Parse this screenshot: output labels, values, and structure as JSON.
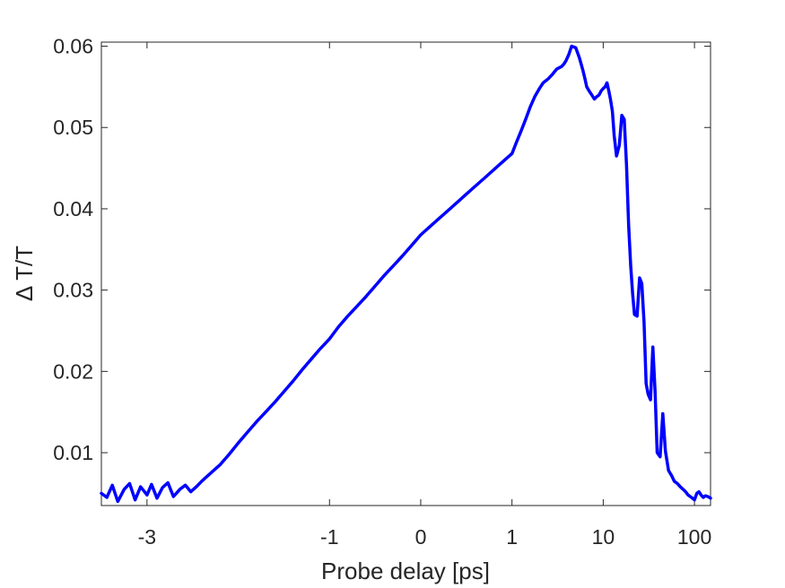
{
  "chart_data": {
    "type": "line",
    "xlabel": "Probe delay [ps]",
    "ylabel": "Δ T/T",
    "x_scale": "linear-log",
    "xlim": [
      -3.5,
      150
    ],
    "ylim": [
      0.0035,
      0.0605
    ],
    "grid": false,
    "legend": "none",
    "x_ticks": [
      -3,
      -1,
      0,
      1,
      10,
      100
    ],
    "x_tick_labels": [
      "-3",
      "-1",
      "0",
      "1",
      "10",
      "100"
    ],
    "y_ticks": [
      0.01,
      0.02,
      0.03,
      0.04,
      0.05,
      0.06
    ],
    "y_tick_labels": [
      "0.01",
      "0.02",
      "0.03",
      "0.04",
      "0.05",
      "0.06"
    ],
    "line_color": "#0000ff",
    "series": [
      {
        "x": [
          -3.5,
          -3.44,
          -3.38,
          -3.32,
          -3.25,
          -3.19,
          -3.13,
          -3.07,
          -3.0,
          -2.95,
          -2.89,
          -2.83,
          -2.77,
          -2.71,
          -2.64,
          -2.58,
          -2.52,
          -2.46,
          -2.4,
          -2.3,
          -2.2,
          -2.1,
          -2.0,
          -1.9,
          -1.8,
          -1.7,
          -1.6,
          -1.5,
          -1.4,
          -1.3,
          -1.2,
          -1.1,
          -1.0,
          -0.9,
          -0.8,
          -0.7,
          -0.6,
          -0.5,
          -0.4,
          -0.3,
          -0.2,
          -0.1,
          0.0,
          0.1,
          0.2,
          0.3,
          0.4,
          0.5,
          0.6,
          0.7,
          0.8,
          0.9,
          1.0,
          1.12,
          1.26,
          1.41,
          1.58,
          1.78,
          2.0,
          2.2,
          2.5,
          2.8,
          3.1,
          3.5,
          3.7,
          3.9,
          4.2,
          4.5,
          5.0,
          5.5,
          6.0,
          6.3,
          6.6,
          7.0,
          7.5,
          8.0,
          8.5,
          9.0,
          9.5,
          10.0,
          10.5,
          11.0,
          11.5,
          12.0,
          12.6,
          13.2,
          14.0,
          15.0,
          16.0,
          17.0,
          18.0,
          19.0,
          20.0,
          21.0,
          22.0,
          23.5,
          25.0,
          26.5,
          28.0,
          29.5,
          31.0,
          33.0,
          35.0,
          37.0,
          39.0,
          42.0,
          45.0,
          48.0,
          52.0,
          56.0,
          60.0,
          65.0,
          70.0,
          75.0,
          80.0,
          85.0,
          90.0,
          95.0,
          100.0,
          106.0,
          112.0,
          118.0,
          125.0,
          132.0,
          140.0,
          150.0
        ],
        "y": [
          0.005,
          0.0045,
          0.006,
          0.004,
          0.0055,
          0.0062,
          0.0042,
          0.0058,
          0.0048,
          0.0061,
          0.0044,
          0.0057,
          0.0063,
          0.0046,
          0.0055,
          0.006,
          0.0052,
          0.0058,
          0.0065,
          0.0075,
          0.0085,
          0.0098,
          0.0112,
          0.0125,
          0.0138,
          0.015,
          0.0162,
          0.0175,
          0.0188,
          0.0202,
          0.0215,
          0.0228,
          0.024,
          0.0255,
          0.0268,
          0.028,
          0.0292,
          0.0305,
          0.0318,
          0.033,
          0.0342,
          0.0355,
          0.0368,
          0.0378,
          0.0388,
          0.0398,
          0.0408,
          0.0418,
          0.0428,
          0.0438,
          0.0448,
          0.0458,
          0.0468,
          0.0482,
          0.0496,
          0.051,
          0.0525,
          0.0538,
          0.0548,
          0.0555,
          0.056,
          0.0566,
          0.0572,
          0.0575,
          0.0578,
          0.0582,
          0.059,
          0.06,
          0.0598,
          0.0585,
          0.057,
          0.056,
          0.055,
          0.0545,
          0.054,
          0.0535,
          0.0538,
          0.054,
          0.0545,
          0.0548,
          0.055,
          0.0555,
          0.0545,
          0.0535,
          0.052,
          0.049,
          0.0465,
          0.0478,
          0.0515,
          0.051,
          0.0455,
          0.038,
          0.033,
          0.0295,
          0.027,
          0.0268,
          0.0315,
          0.0308,
          0.026,
          0.0185,
          0.0172,
          0.0165,
          0.023,
          0.0175,
          0.01,
          0.0095,
          0.0148,
          0.0102,
          0.0078,
          0.0072,
          0.0065,
          0.0062,
          0.0058,
          0.0055,
          0.0052,
          0.0048,
          0.0046,
          0.0044,
          0.0042,
          0.005,
          0.0052,
          0.0048,
          0.0045,
          0.0047,
          0.0046,
          0.0044
        ]
      }
    ]
  }
}
